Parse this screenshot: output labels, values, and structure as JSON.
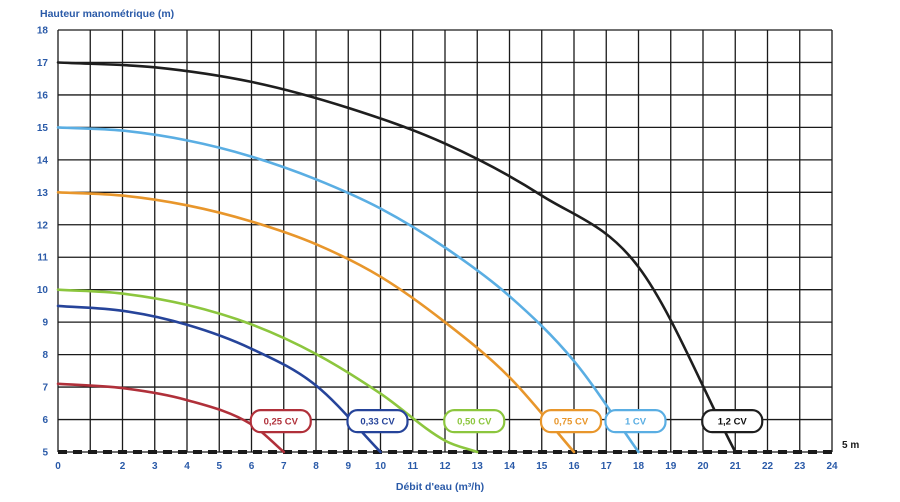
{
  "chart_data": {
    "type": "line",
    "ylabel": "Hauteur manométrique (m)",
    "xlabel": "Débit d'eau (m³/h)",
    "xlim": [
      0,
      24
    ],
    "ylim": [
      5,
      18
    ],
    "x_ticks": [
      0,
      2,
      3,
      4,
      5,
      6,
      7,
      8,
      9,
      10,
      11,
      12,
      13,
      14,
      15,
      16,
      17,
      18,
      19,
      20,
      21,
      22,
      23,
      24
    ],
    "y_ticks": [
      5,
      6,
      7,
      8,
      9,
      10,
      11,
      12,
      13,
      14,
      15,
      16,
      17,
      18
    ],
    "grid": true,
    "reference_line": {
      "y": 5,
      "label": "5 m",
      "style": "dashed"
    },
    "series": [
      {
        "name": "0,25 CV",
        "color": "#b0303a",
        "shutoff_head": 7.1,
        "max_flow": 7.0,
        "x": [
          0,
          2,
          4,
          6,
          7
        ],
        "y": [
          7.1,
          6.97,
          6.6,
          5.85,
          5.0
        ]
      },
      {
        "name": "0,33 CV",
        "color": "#26449a",
        "shutoff_head": 9.5,
        "max_flow": 10.0,
        "x": [
          0,
          2,
          4,
          6,
          8,
          10
        ],
        "y": [
          9.5,
          9.35,
          8.92,
          8.18,
          7.05,
          5.0
        ]
      },
      {
        "name": "0,50 CV",
        "color": "#8cc63e",
        "shutoff_head": 10.0,
        "max_flow": 13.0,
        "x": [
          0,
          2,
          4,
          6,
          8,
          10,
          12,
          13
        ],
        "y": [
          10.0,
          9.88,
          9.53,
          8.93,
          8.02,
          6.8,
          5.35,
          5.0
        ]
      },
      {
        "name": "0,75 CV",
        "color": "#e8962b",
        "shutoff_head": 13.0,
        "max_flow": 16.0,
        "x": [
          0,
          2,
          4,
          6,
          8,
          10,
          12,
          14,
          16
        ],
        "y": [
          13.0,
          12.9,
          12.6,
          12.1,
          11.4,
          10.4,
          9.0,
          7.3,
          5.0
        ]
      },
      {
        "name": "1 CV",
        "color": "#5aaee3",
        "shutoff_head": 15.0,
        "max_flow": 18.0,
        "x": [
          0,
          2,
          4,
          6,
          8,
          10,
          12,
          14,
          16,
          18
        ],
        "y": [
          15.0,
          14.9,
          14.6,
          14.1,
          13.4,
          12.5,
          11.3,
          9.8,
          7.8,
          5.0
        ]
      },
      {
        "name": "1,2 CV",
        "color": "#1e1e1e",
        "shutoff_head": 17.0,
        "max_flow": 21.0,
        "x": [
          0,
          3,
          6,
          9,
          12,
          15,
          18,
          21
        ],
        "y": [
          17.0,
          16.85,
          16.4,
          15.6,
          14.5,
          12.9,
          10.7,
          5.0
        ]
      }
    ]
  }
}
